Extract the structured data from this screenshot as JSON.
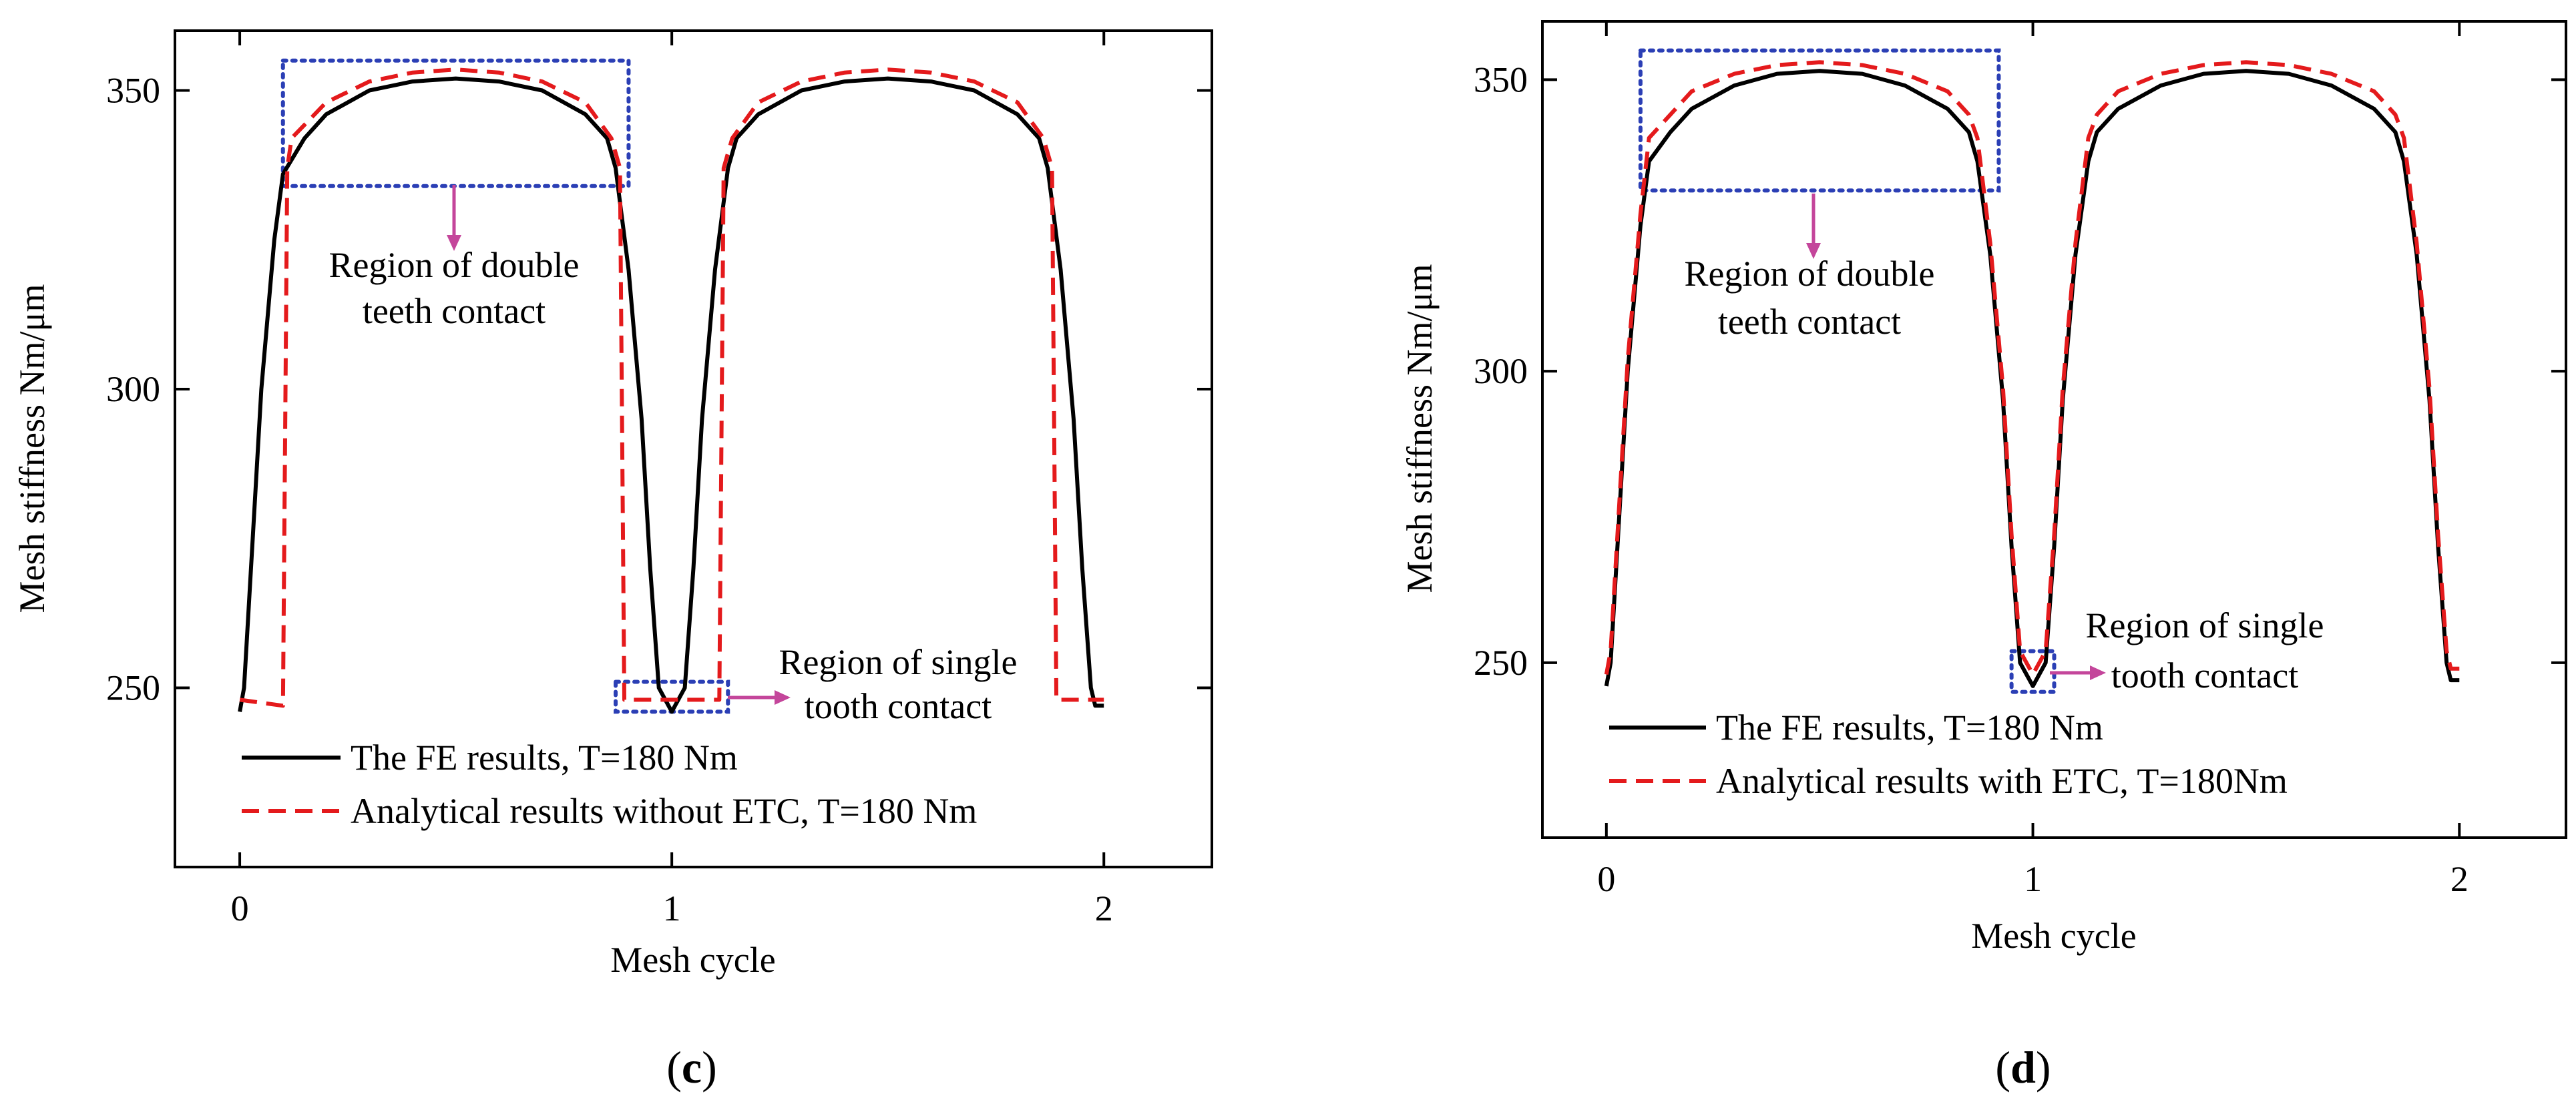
{
  "figure": {
    "panels": [
      {
        "id": "c",
        "label_open": "(",
        "label_letter": "c",
        "label_close": ")"
      },
      {
        "id": "d",
        "label_open": "(",
        "label_letter": "d",
        "label_close": ")"
      }
    ]
  },
  "colors": {
    "fe_line": "#000000",
    "analytical_line": "#e41a1c",
    "box": "#2b3fb5",
    "arrow": "#c4469b"
  },
  "chart_data": [
    {
      "type": "line",
      "panel": "c",
      "title": "",
      "xlabel": "Mesh cycle",
      "ylabel": "Mesh stiffness Nm/μm",
      "xlim": [
        -0.15,
        2.25
      ],
      "ylim": [
        220,
        360
      ],
      "xticks": [
        0,
        1,
        2
      ],
      "yticks": [
        250,
        300,
        350
      ],
      "legend_position": "bottom-left",
      "series": [
        {
          "name": "The FE results, T=180 Nm",
          "style": "solid",
          "x": [
            0.0,
            0.01,
            0.03,
            0.05,
            0.08,
            0.1,
            0.15,
            0.2,
            0.3,
            0.4,
            0.5,
            0.6,
            0.7,
            0.8,
            0.85,
            0.87,
            0.9,
            0.93,
            0.95,
            0.97,
            1.0,
            1.03,
            1.05,
            1.07,
            1.1,
            1.13,
            1.15,
            1.2,
            1.3,
            1.4,
            1.5,
            1.6,
            1.7,
            1.8,
            1.85,
            1.87,
            1.9,
            1.93,
            1.95,
            1.97,
            1.98,
            2.0
          ],
          "y": [
            246,
            250,
            275,
            300,
            325,
            336,
            342,
            346,
            350,
            351.5,
            352,
            351.5,
            350,
            346,
            342,
            337,
            320,
            295,
            270,
            250,
            246,
            250,
            270,
            295,
            320,
            337,
            342,
            346,
            350,
            351.5,
            352,
            351.5,
            350,
            346,
            342,
            337,
            320,
            295,
            270,
            250,
            247,
            247
          ]
        },
        {
          "name": "Analytical results without ETC, T=180 Nm",
          "style": "dashed",
          "x": [
            0.0,
            0.1,
            0.11,
            0.12,
            0.2,
            0.3,
            0.4,
            0.5,
            0.6,
            0.7,
            0.8,
            0.86,
            0.88,
            0.89,
            1.11,
            1.12,
            1.14,
            1.2,
            1.3,
            1.4,
            1.5,
            1.6,
            1.7,
            1.8,
            1.86,
            1.88,
            1.89,
            2.0
          ],
          "y": [
            248,
            247,
            337,
            342,
            348,
            351.5,
            353,
            353.5,
            353,
            351.5,
            348,
            342,
            337,
            248,
            248,
            337,
            342,
            348,
            351.5,
            353,
            353.5,
            353,
            351.5,
            348,
            342,
            337,
            248,
            248
          ]
        }
      ],
      "annotations": [
        {
          "line1": "Region of double",
          "line2": "teeth contact"
        },
        {
          "line1": "Region of single",
          "line2": "tooth contact"
        }
      ],
      "boxes": [
        {
          "x": [
            0.1,
            0.9
          ],
          "y": [
            334,
            355
          ]
        },
        {
          "x": [
            0.87,
            1.13
          ],
          "y": [
            246,
            251
          ]
        }
      ]
    },
    {
      "type": "line",
      "panel": "d",
      "title": "",
      "xlabel": "Mesh cycle",
      "ylabel": "Mesh stiffness Nm/μm",
      "xlim": [
        -0.15,
        2.25
      ],
      "ylim": [
        220,
        360
      ],
      "xticks": [
        0,
        1,
        2
      ],
      "yticks": [
        250,
        300,
        350
      ],
      "legend_position": "bottom-left",
      "series": [
        {
          "name": "The FE results, T=180 Nm",
          "style": "solid",
          "x": [
            0.0,
            0.01,
            0.03,
            0.05,
            0.08,
            0.1,
            0.15,
            0.2,
            0.3,
            0.4,
            0.5,
            0.6,
            0.7,
            0.8,
            0.85,
            0.87,
            0.9,
            0.93,
            0.95,
            0.97,
            1.0,
            1.03,
            1.05,
            1.07,
            1.1,
            1.13,
            1.15,
            1.2,
            1.3,
            1.4,
            1.5,
            1.6,
            1.7,
            1.8,
            1.85,
            1.87,
            1.9,
            1.93,
            1.95,
            1.97,
            1.98,
            2.0
          ],
          "y": [
            246,
            250,
            275,
            300,
            325,
            336,
            341,
            345,
            349,
            351,
            351.5,
            351,
            349,
            345,
            341,
            336,
            320,
            295,
            270,
            250,
            246,
            250,
            270,
            295,
            320,
            336,
            341,
            345,
            349,
            351,
            351.5,
            351,
            349,
            345,
            341,
            336,
            320,
            295,
            270,
            250,
            247,
            247
          ]
        },
        {
          "name": "Analytical results with ETC, T=180Nm",
          "style": "dashed",
          "x": [
            0.0,
            0.01,
            0.03,
            0.05,
            0.08,
            0.1,
            0.15,
            0.2,
            0.3,
            0.4,
            0.5,
            0.6,
            0.7,
            0.8,
            0.85,
            0.87,
            0.9,
            0.93,
            0.95,
            0.97,
            1.0,
            1.03,
            1.05,
            1.07,
            1.1,
            1.13,
            1.15,
            1.2,
            1.3,
            1.4,
            1.5,
            1.6,
            1.7,
            1.8,
            1.85,
            1.87,
            1.9,
            1.93,
            1.95,
            1.97,
            1.98,
            2.0
          ],
          "y": [
            248,
            252,
            277,
            302,
            327,
            340,
            344,
            348,
            351,
            352.5,
            353,
            352.5,
            351,
            348,
            344,
            340,
            322,
            297,
            272,
            252,
            248,
            252,
            272,
            297,
            322,
            340,
            344,
            348,
            351,
            352.5,
            353,
            352.5,
            351,
            348,
            344,
            340,
            322,
            297,
            272,
            252,
            249,
            249
          ]
        }
      ],
      "annotations": [
        {
          "line1": "Region of double",
          "line2": "teeth contact"
        },
        {
          "line1": "Region of single",
          "line2": "tooth contact"
        }
      ],
      "boxes": [
        {
          "x": [
            0.08,
            0.92
          ],
          "y": [
            331,
            355
          ]
        },
        {
          "x": [
            0.95,
            1.05
          ],
          "y": [
            245,
            252
          ]
        }
      ]
    }
  ]
}
